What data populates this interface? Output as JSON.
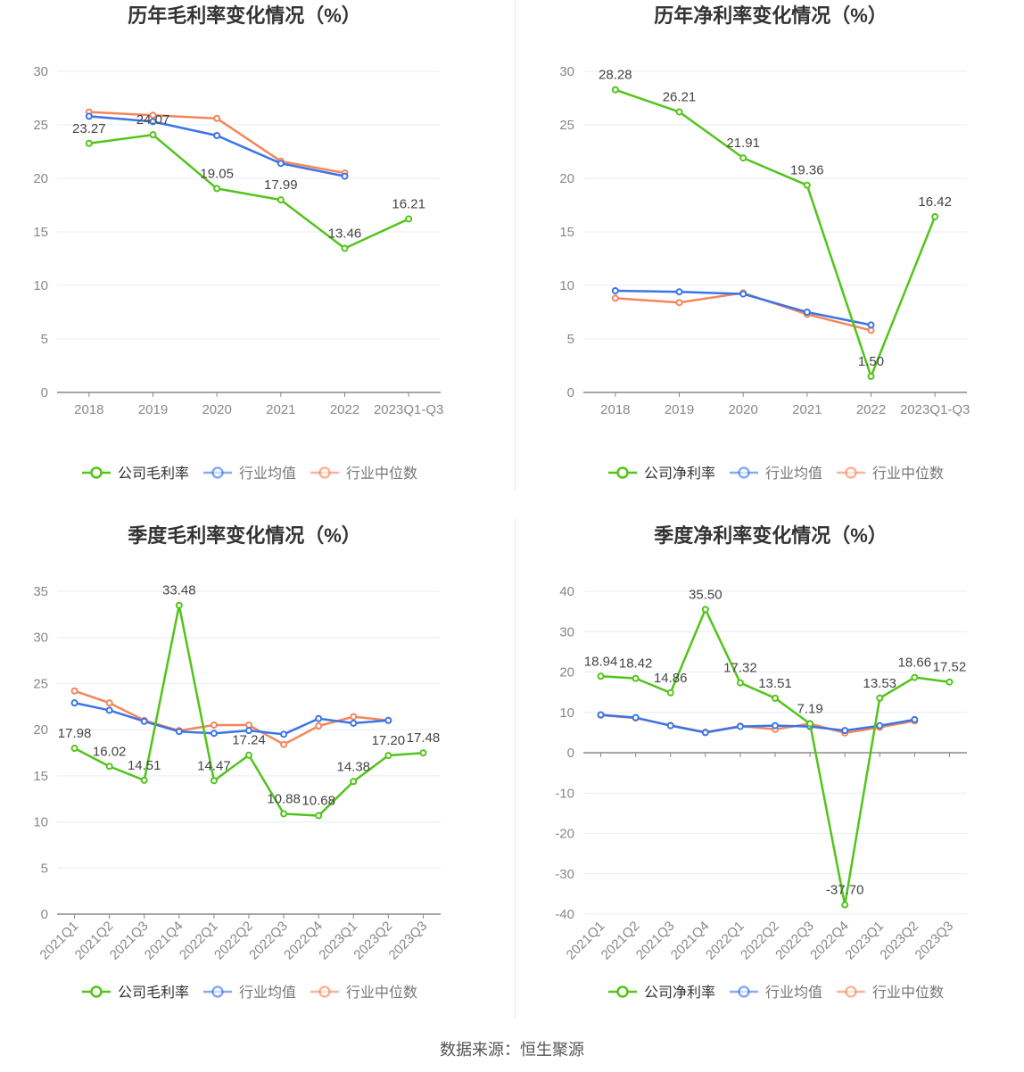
{
  "colors": {
    "company": "#52c41a",
    "avg": "#3a75e6",
    "median": "#f5855a",
    "grid": "#e8ecf7",
    "axis": "#999",
    "text": "#333"
  },
  "source": "数据来源：恒生聚源",
  "chart_data": [
    {
      "type": "line",
      "title": "历年毛利率变化情况（%）",
      "categories": [
        "2018",
        "2019",
        "2020",
        "2021",
        "2022",
        "2023Q1-Q3"
      ],
      "ylim": [
        0,
        30
      ],
      "yticks": [
        0,
        5,
        10,
        15,
        20,
        25,
        30
      ],
      "rotate": false,
      "series": [
        {
          "name": "公司毛利率",
          "key": "company",
          "values": [
            23.27,
            24.07,
            19.05,
            17.99,
            13.46,
            16.21
          ],
          "labels": true
        },
        {
          "name": "行业均值",
          "key": "avg",
          "values": [
            25.8,
            25.3,
            24.0,
            21.4,
            20.2,
            null
          ]
        },
        {
          "name": "行业中位数",
          "key": "median",
          "values": [
            26.2,
            25.9,
            25.6,
            21.6,
            20.5,
            null
          ]
        }
      ]
    },
    {
      "type": "line",
      "title": "历年净利率变化情况（%）",
      "categories": [
        "2018",
        "2019",
        "2020",
        "2021",
        "2022",
        "2023Q1-Q3"
      ],
      "ylim": [
        0,
        30
      ],
      "yticks": [
        0,
        5,
        10,
        15,
        20,
        25,
        30
      ],
      "rotate": false,
      "series": [
        {
          "name": "公司净利率",
          "key": "company",
          "values": [
            28.28,
            26.21,
            21.91,
            19.36,
            1.5,
            16.42
          ],
          "labels": true
        },
        {
          "name": "行业均值",
          "key": "avg",
          "values": [
            9.5,
            9.4,
            9.2,
            7.5,
            6.3,
            null
          ]
        },
        {
          "name": "行业中位数",
          "key": "median",
          "values": [
            8.8,
            8.4,
            9.3,
            7.3,
            5.8,
            null
          ]
        }
      ]
    },
    {
      "type": "line",
      "title": "季度毛利率变化情况（%）",
      "categories": [
        "2021Q1",
        "2021Q2",
        "2021Q3",
        "2021Q4",
        "2022Q1",
        "2022Q2",
        "2022Q3",
        "2022Q4",
        "2023Q1",
        "2023Q2",
        "2023Q3"
      ],
      "ylim": [
        0,
        35
      ],
      "yticks": [
        0,
        5,
        10,
        15,
        20,
        25,
        30,
        35
      ],
      "rotate": true,
      "series": [
        {
          "name": "公司毛利率",
          "key": "company",
          "values": [
            17.98,
            16.02,
            14.51,
            33.48,
            14.47,
            17.24,
            10.88,
            10.68,
            14.38,
            17.2,
            17.48
          ],
          "labels": true
        },
        {
          "name": "行业均值",
          "key": "avg",
          "values": [
            22.9,
            22.1,
            20.9,
            19.8,
            19.6,
            19.9,
            19.5,
            21.2,
            20.7,
            21.0,
            null
          ]
        },
        {
          "name": "行业中位数",
          "key": "median",
          "values": [
            24.2,
            22.9,
            21.0,
            19.9,
            20.5,
            20.5,
            18.4,
            20.4,
            21.4,
            21.0,
            null
          ]
        }
      ]
    },
    {
      "type": "line",
      "title": "季度净利率变化情况（%）",
      "categories": [
        "2021Q1",
        "2021Q2",
        "2021Q3",
        "2021Q4",
        "2022Q1",
        "2022Q2",
        "2022Q3",
        "2022Q4",
        "2023Q1",
        "2023Q2",
        "2023Q3"
      ],
      "ylim": [
        -40,
        40
      ],
      "yticks": [
        -40,
        -30,
        -20,
        -10,
        0,
        10,
        20,
        30,
        40
      ],
      "rotate": true,
      "series": [
        {
          "name": "公司净利率",
          "key": "company",
          "values": [
            18.94,
            18.42,
            14.86,
            35.5,
            17.32,
            13.51,
            7.19,
            -37.7,
            13.53,
            18.66,
            17.52
          ],
          "labels": true
        },
        {
          "name": "行业均值",
          "key": "avg",
          "values": [
            9.4,
            8.7,
            6.7,
            5.0,
            6.5,
            6.7,
            6.5,
            5.5,
            6.7,
            8.2,
            null
          ]
        },
        {
          "name": "行业中位数",
          "key": "median",
          "values": [
            9.3,
            8.6,
            6.8,
            5.1,
            6.6,
            5.8,
            7.2,
            4.9,
            6.3,
            7.9,
            null
          ]
        }
      ]
    }
  ]
}
